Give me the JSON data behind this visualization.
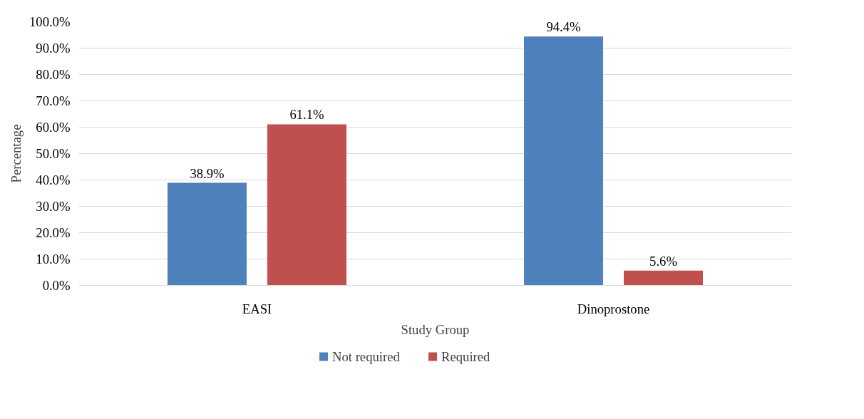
{
  "chart_data": {
    "type": "bar",
    "xlabel": "Study Group",
    "ylabel": "Percentage",
    "categories": [
      "EASI",
      "Dinoprostone"
    ],
    "series": [
      {
        "name": "Not required",
        "color": "#4f81bd",
        "values": [
          38.9,
          94.4
        ],
        "value_labels": [
          "38.9%",
          "94.4%"
        ]
      },
      {
        "name": "Required",
        "color": "#c0504d",
        "values": [
          61.1,
          5.6
        ],
        "value_labels": [
          "61.1%",
          "5.6%"
        ]
      }
    ],
    "ylim": [
      0,
      100
    ],
    "yticks": [
      {
        "value": 0,
        "label": "0.0%"
      },
      {
        "value": 10,
        "label": "10.0%"
      },
      {
        "value": 20,
        "label": "20.0%"
      },
      {
        "value": 30,
        "label": "30.0%"
      },
      {
        "value": 40,
        "label": "40.0%"
      },
      {
        "value": 50,
        "label": "50.0%"
      },
      {
        "value": 60,
        "label": "60.0%"
      },
      {
        "value": 70,
        "label": "70.0%"
      },
      {
        "value": 80,
        "label": "80.0%"
      },
      {
        "value": 90,
        "label": "90.0%"
      },
      {
        "value": 100,
        "label": "100.0%"
      }
    ],
    "grid": "y",
    "legend": "bottom"
  }
}
